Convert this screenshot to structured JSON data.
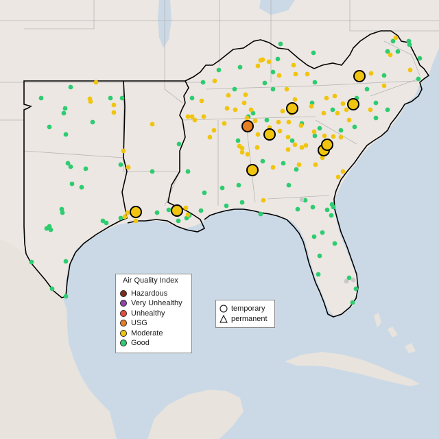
{
  "legend": {
    "title": "Air Quality Index",
    "categories": [
      {
        "label": "Hazardous",
        "color": "#7e2a22"
      },
      {
        "label": "Very Unhealthy",
        "color": "#8e44ad"
      },
      {
        "label": "Unhealthy",
        "color": "#e74c3c"
      },
      {
        "label": "USG",
        "color": "#e67e22"
      },
      {
        "label": "Moderate",
        "color": "#f1c40f"
      },
      {
        "label": "Good",
        "color": "#2ecc71"
      }
    ]
  },
  "shape_legend": {
    "temporary": "temporary",
    "permanent": "permanent"
  },
  "colors": {
    "water": "#cbd9e6",
    "land": "#ece7e2",
    "border": "#b5b5b5",
    "outline": "#000000"
  }
}
